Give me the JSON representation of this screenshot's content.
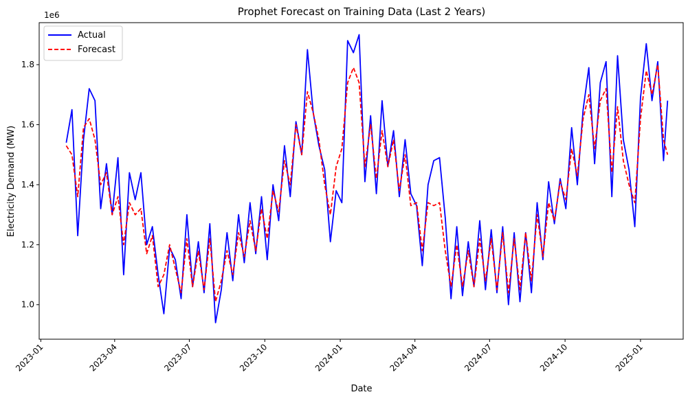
{
  "chart_data": {
    "type": "line",
    "title": "Prophet Forecast on Training Data (Last 2 Years)",
    "xlabel": "Date",
    "ylabel": "Electricity Demand (MW)",
    "y_offset_label": "1e6",
    "x_range": [
      "2022-12-30",
      "2025-02-22"
    ],
    "ylim": [
      0.885,
      1.94
    ],
    "y_ticks": [
      1.0,
      1.2,
      1.4,
      1.6,
      1.8
    ],
    "y_tick_labels": [
      "1.0",
      "1.2",
      "1.4",
      "1.6",
      "1.8"
    ],
    "x_ticks": [
      "2023-01-01",
      "2023-04-01",
      "2023-07-01",
      "2023-10-01",
      "2024-01-01",
      "2024-04-01",
      "2024-07-01",
      "2024-10-01",
      "2025-01-01"
    ],
    "x_tick_labels": [
      "2023-01",
      "2023-04",
      "2023-07",
      "2023-10",
      "2024-01",
      "2024-04",
      "2024-07",
      "2024-10",
      "2025-01"
    ],
    "grid": false,
    "legend_position": "upper-left",
    "x": [
      "2023-02-01",
      "2023-02-08",
      "2023-02-15",
      "2023-02-22",
      "2023-03-01",
      "2023-03-08",
      "2023-03-15",
      "2023-03-22",
      "2023-03-29",
      "2023-04-05",
      "2023-04-12",
      "2023-04-19",
      "2023-04-26",
      "2023-05-03",
      "2023-05-10",
      "2023-05-17",
      "2023-05-24",
      "2023-05-31",
      "2023-06-07",
      "2023-06-14",
      "2023-06-21",
      "2023-06-28",
      "2023-07-05",
      "2023-07-12",
      "2023-07-19",
      "2023-07-26",
      "2023-08-02",
      "2023-08-09",
      "2023-08-16",
      "2023-08-23",
      "2023-08-30",
      "2023-09-06",
      "2023-09-13",
      "2023-09-20",
      "2023-09-27",
      "2023-10-04",
      "2023-10-11",
      "2023-10-18",
      "2023-10-25",
      "2023-11-01",
      "2023-11-08",
      "2023-11-15",
      "2023-11-22",
      "2023-11-29",
      "2023-12-06",
      "2023-12-13",
      "2023-12-20",
      "2023-12-27",
      "2024-01-03",
      "2024-01-10",
      "2024-01-17",
      "2024-01-24",
      "2024-01-31",
      "2024-02-07",
      "2024-02-14",
      "2024-02-21",
      "2024-02-28",
      "2024-03-06",
      "2024-03-13",
      "2024-03-20",
      "2024-03-27",
      "2024-04-03",
      "2024-04-10",
      "2024-04-17",
      "2024-04-24",
      "2024-05-01",
      "2024-05-08",
      "2024-05-15",
      "2024-05-22",
      "2024-05-29",
      "2024-06-05",
      "2024-06-12",
      "2024-06-19",
      "2024-06-26",
      "2024-07-03",
      "2024-07-10",
      "2024-07-17",
      "2024-07-24",
      "2024-07-31",
      "2024-08-07",
      "2024-08-14",
      "2024-08-21",
      "2024-08-28",
      "2024-09-04",
      "2024-09-11",
      "2024-09-18",
      "2024-09-25",
      "2024-10-02",
      "2024-10-09",
      "2024-10-16",
      "2024-10-23",
      "2024-10-30",
      "2024-11-06",
      "2024-11-13",
      "2024-11-20",
      "2024-11-27",
      "2024-12-04",
      "2024-12-11",
      "2024-12-18",
      "2024-12-25",
      "2025-01-01",
      "2025-01-08",
      "2025-01-15",
      "2025-01-22",
      "2025-01-29",
      "2025-02-03"
    ],
    "series": [
      {
        "name": "Actual",
        "color": "#0000ff",
        "style": "solid",
        "values": [
          1.54,
          1.65,
          1.23,
          1.55,
          1.72,
          1.68,
          1.32,
          1.47,
          1.3,
          1.49,
          1.1,
          1.44,
          1.35,
          1.44,
          1.2,
          1.26,
          1.1,
          0.97,
          1.19,
          1.15,
          1.02,
          1.3,
          1.06,
          1.21,
          1.04,
          1.27,
          0.94,
          1.05,
          1.24,
          1.08,
          1.3,
          1.14,
          1.34,
          1.17,
          1.36,
          1.15,
          1.4,
          1.28,
          1.53,
          1.36,
          1.61,
          1.5,
          1.85,
          1.64,
          1.53,
          1.45,
          1.21,
          1.38,
          1.34,
          1.88,
          1.84,
          1.9,
          1.41,
          1.63,
          1.37,
          1.68,
          1.46,
          1.58,
          1.36,
          1.55,
          1.37,
          1.33,
          1.13,
          1.4,
          1.48,
          1.49,
          1.29,
          1.02,
          1.26,
          1.03,
          1.21,
          1.06,
          1.28,
          1.05,
          1.25,
          1.04,
          1.26,
          1.0,
          1.24,
          1.01,
          1.24,
          1.04,
          1.34,
          1.15,
          1.41,
          1.27,
          1.42,
          1.32,
          1.59,
          1.4,
          1.65,
          1.79,
          1.47,
          1.74,
          1.81,
          1.36,
          1.83,
          1.55,
          1.45,
          1.26,
          1.69,
          1.87,
          1.68,
          1.81,
          1.48,
          1.68
        ]
      },
      {
        "name": "Forecast",
        "color": "#ff0000",
        "style": "dashed",
        "values": [
          1.53,
          1.5,
          1.36,
          1.59,
          1.62,
          1.55,
          1.4,
          1.44,
          1.3,
          1.36,
          1.2,
          1.34,
          1.3,
          1.32,
          1.17,
          1.23,
          1.06,
          1.1,
          1.2,
          1.12,
          1.04,
          1.22,
          1.06,
          1.18,
          1.05,
          1.22,
          1.01,
          1.08,
          1.18,
          1.1,
          1.24,
          1.16,
          1.28,
          1.18,
          1.32,
          1.22,
          1.38,
          1.31,
          1.48,
          1.4,
          1.6,
          1.5,
          1.71,
          1.64,
          1.55,
          1.4,
          1.3,
          1.46,
          1.52,
          1.74,
          1.79,
          1.74,
          1.46,
          1.6,
          1.42,
          1.58,
          1.46,
          1.55,
          1.38,
          1.5,
          1.33,
          1.34,
          1.18,
          1.34,
          1.33,
          1.34,
          1.18,
          1.06,
          1.2,
          1.06,
          1.18,
          1.06,
          1.22,
          1.08,
          1.22,
          1.05,
          1.24,
          1.04,
          1.22,
          1.05,
          1.24,
          1.08,
          1.3,
          1.16,
          1.34,
          1.28,
          1.41,
          1.35,
          1.52,
          1.43,
          1.62,
          1.7,
          1.52,
          1.68,
          1.72,
          1.44,
          1.66,
          1.48,
          1.4,
          1.34,
          1.62,
          1.78,
          1.7,
          1.8,
          1.55,
          1.5
        ]
      }
    ]
  }
}
